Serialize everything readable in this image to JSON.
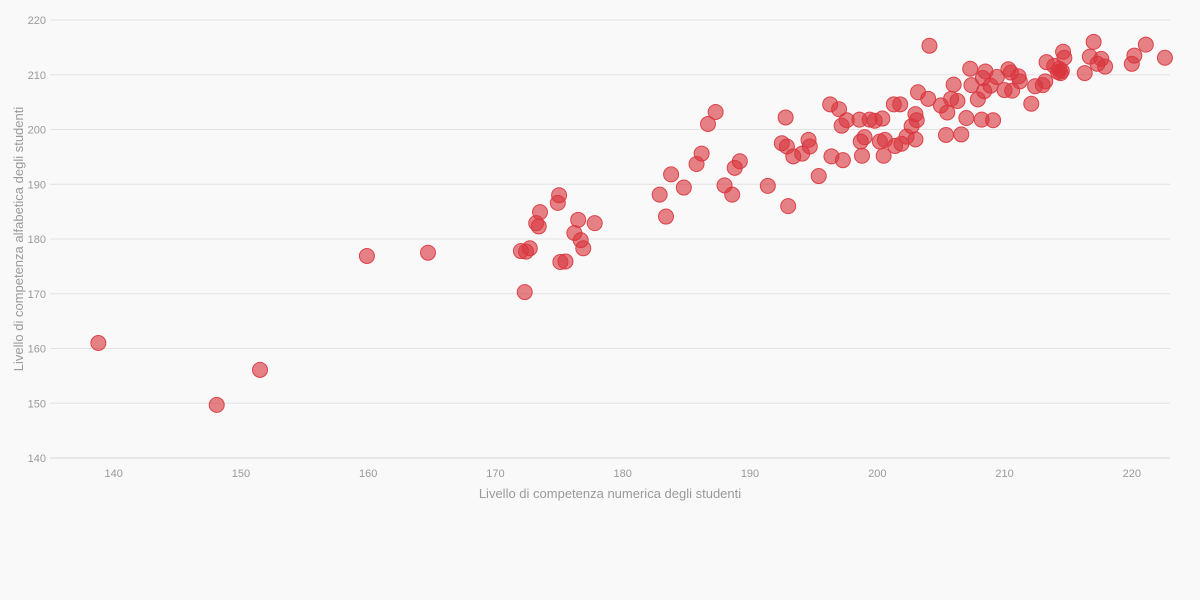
{
  "chart_data": {
    "type": "scatter",
    "title": "",
    "xlabel": "Livello di competenza numerica degli studenti",
    "ylabel": "Livello di competenza alfabetica degli studenti",
    "xlim": [
      135,
      223
    ],
    "ylim": [
      140,
      220
    ],
    "x_ticks": [
      140,
      150,
      160,
      170,
      180,
      190,
      200,
      210,
      220
    ],
    "y_ticks": [
      140,
      150,
      160,
      170,
      180,
      190,
      200,
      210,
      220
    ],
    "grid": "horizontal",
    "legend": "none",
    "point_color": "#d9363e",
    "points": [
      {
        "x": 138.8,
        "y": 161.0
      },
      {
        "x": 148.1,
        "y": 149.7
      },
      {
        "x": 151.5,
        "y": 156.1
      },
      {
        "x": 159.9,
        "y": 176.9
      },
      {
        "x": 164.7,
        "y": 177.5
      },
      {
        "x": 172.0,
        "y": 177.8
      },
      {
        "x": 172.3,
        "y": 170.3
      },
      {
        "x": 172.4,
        "y": 177.7
      },
      {
        "x": 172.7,
        "y": 178.3
      },
      {
        "x": 173.2,
        "y": 182.9
      },
      {
        "x": 173.4,
        "y": 182.3
      },
      {
        "x": 173.5,
        "y": 184.9
      },
      {
        "x": 174.9,
        "y": 186.6
      },
      {
        "x": 175.0,
        "y": 188.0
      },
      {
        "x": 175.1,
        "y": 175.8
      },
      {
        "x": 175.5,
        "y": 175.9
      },
      {
        "x": 176.2,
        "y": 181.1
      },
      {
        "x": 176.5,
        "y": 183.5
      },
      {
        "x": 176.7,
        "y": 179.8
      },
      {
        "x": 176.9,
        "y": 178.3
      },
      {
        "x": 177.8,
        "y": 182.9
      },
      {
        "x": 182.9,
        "y": 188.1
      },
      {
        "x": 183.4,
        "y": 184.1
      },
      {
        "x": 183.8,
        "y": 191.8
      },
      {
        "x": 184.8,
        "y": 189.4
      },
      {
        "x": 185.8,
        "y": 193.7
      },
      {
        "x": 186.2,
        "y": 195.6
      },
      {
        "x": 186.7,
        "y": 201.0
      },
      {
        "x": 187.3,
        "y": 203.2
      },
      {
        "x": 188.0,
        "y": 189.8
      },
      {
        "x": 188.6,
        "y": 188.1
      },
      {
        "x": 188.8,
        "y": 193.0
      },
      {
        "x": 189.2,
        "y": 194.2
      },
      {
        "x": 191.4,
        "y": 189.7
      },
      {
        "x": 192.5,
        "y": 197.5
      },
      {
        "x": 192.8,
        "y": 202.2
      },
      {
        "x": 193.0,
        "y": 186.0
      },
      {
        "x": 192.9,
        "y": 196.9
      },
      {
        "x": 193.4,
        "y": 195.1
      },
      {
        "x": 194.1,
        "y": 195.6
      },
      {
        "x": 194.6,
        "y": 198.1
      },
      {
        "x": 194.7,
        "y": 196.9
      },
      {
        "x": 195.4,
        "y": 191.5
      },
      {
        "x": 196.3,
        "y": 204.6
      },
      {
        "x": 196.4,
        "y": 195.1
      },
      {
        "x": 197.0,
        "y": 203.7
      },
      {
        "x": 197.2,
        "y": 200.7
      },
      {
        "x": 197.3,
        "y": 194.4
      },
      {
        "x": 197.6,
        "y": 201.7
      },
      {
        "x": 198.6,
        "y": 201.8
      },
      {
        "x": 198.7,
        "y": 197.8
      },
      {
        "x": 198.8,
        "y": 195.2
      },
      {
        "x": 199.0,
        "y": 198.6
      },
      {
        "x": 199.4,
        "y": 201.8
      },
      {
        "x": 199.8,
        "y": 201.6
      },
      {
        "x": 200.2,
        "y": 197.8
      },
      {
        "x": 200.4,
        "y": 202.0
      },
      {
        "x": 200.5,
        "y": 195.2
      },
      {
        "x": 200.6,
        "y": 198.1
      },
      {
        "x": 201.3,
        "y": 204.6
      },
      {
        "x": 201.4,
        "y": 197.0
      },
      {
        "x": 201.8,
        "y": 204.6
      },
      {
        "x": 201.9,
        "y": 197.4
      },
      {
        "x": 202.3,
        "y": 198.7
      },
      {
        "x": 202.7,
        "y": 200.6
      },
      {
        "x": 203.0,
        "y": 198.2
      },
      {
        "x": 203.0,
        "y": 202.8
      },
      {
        "x": 203.1,
        "y": 201.7
      },
      {
        "x": 203.2,
        "y": 206.8
      },
      {
        "x": 204.0,
        "y": 205.6
      },
      {
        "x": 204.1,
        "y": 215.3
      },
      {
        "x": 205.0,
        "y": 204.4
      },
      {
        "x": 205.4,
        "y": 199.0
      },
      {
        "x": 205.5,
        "y": 203.1
      },
      {
        "x": 205.8,
        "y": 205.6
      },
      {
        "x": 206.0,
        "y": 208.2
      },
      {
        "x": 206.3,
        "y": 205.2
      },
      {
        "x": 206.6,
        "y": 199.1
      },
      {
        "x": 207.0,
        "y": 202.1
      },
      {
        "x": 207.3,
        "y": 211.1
      },
      {
        "x": 207.4,
        "y": 208.1
      },
      {
        "x": 207.9,
        "y": 205.5
      },
      {
        "x": 208.2,
        "y": 201.8
      },
      {
        "x": 208.3,
        "y": 209.4
      },
      {
        "x": 208.4,
        "y": 207.0
      },
      {
        "x": 208.5,
        "y": 210.6
      },
      {
        "x": 208.9,
        "y": 208.0
      },
      {
        "x": 209.1,
        "y": 201.7
      },
      {
        "x": 209.4,
        "y": 209.6
      },
      {
        "x": 210.0,
        "y": 207.2
      },
      {
        "x": 210.3,
        "y": 211.0
      },
      {
        "x": 210.5,
        "y": 210.4
      },
      {
        "x": 210.6,
        "y": 207.1
      },
      {
        "x": 211.1,
        "y": 209.7
      },
      {
        "x": 211.2,
        "y": 208.8
      },
      {
        "x": 212.1,
        "y": 204.7
      },
      {
        "x": 212.4,
        "y": 207.9
      },
      {
        "x": 213.0,
        "y": 208.1
      },
      {
        "x": 213.2,
        "y": 208.8
      },
      {
        "x": 213.3,
        "y": 212.3
      },
      {
        "x": 213.9,
        "y": 211.6
      },
      {
        "x": 214.2,
        "y": 210.5
      },
      {
        "x": 214.3,
        "y": 211.1
      },
      {
        "x": 214.4,
        "y": 210.3
      },
      {
        "x": 214.5,
        "y": 210.7
      },
      {
        "x": 214.6,
        "y": 214.2
      },
      {
        "x": 214.7,
        "y": 213.1
      },
      {
        "x": 216.3,
        "y": 210.3
      },
      {
        "x": 216.7,
        "y": 213.3
      },
      {
        "x": 217.0,
        "y": 216.0
      },
      {
        "x": 217.3,
        "y": 212.0
      },
      {
        "x": 217.6,
        "y": 212.9
      },
      {
        "x": 217.9,
        "y": 211.5
      },
      {
        "x": 220.0,
        "y": 212.0
      },
      {
        "x": 220.2,
        "y": 213.5
      },
      {
        "x": 221.1,
        "y": 215.5
      },
      {
        "x": 222.6,
        "y": 213.1
      }
    ]
  }
}
